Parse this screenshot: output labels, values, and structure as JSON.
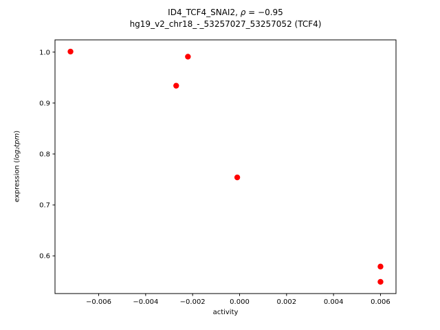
{
  "title": {
    "prefix": "ID4_TCF4_SNAI2, ",
    "math_rho": "ρ",
    "math_rest": " = −0.95",
    "line2": "hg19_v2_chr18_-_53257027_53257052 (TCF4)"
  },
  "ylabel_parts": {
    "prefix": "expression (",
    "math": "log₂tpm",
    "suffix": ")"
  },
  "chart_data": {
    "type": "scatter",
    "title": "ID4_TCF4_SNAI2, ρ = −0.95\nhg19_v2_chr18_-_53257027_53257052 (TCF4)",
    "xlabel": "activity",
    "ylabel": "expression (log2 tpm)",
    "marker_color": "#ff0000",
    "marker_radius": 4.2,
    "axis_color": "#000000",
    "xlim": [
      -0.00786,
      0.00666
    ],
    "ylim": [
      0.526,
      1.024
    ],
    "xticks": [
      -0.006,
      -0.004,
      -0.002,
      0.0,
      0.002,
      0.004,
      0.006
    ],
    "xtick_labels": [
      "−0.006",
      "−0.004",
      "−0.002",
      "0.000",
      "0.002",
      "0.004",
      "0.006"
    ],
    "yticks": [
      0.6,
      0.7,
      0.8,
      0.9,
      1.0
    ],
    "ytick_labels": [
      "0.6",
      "0.7",
      "0.8",
      "0.9",
      "1.0"
    ],
    "grid": false,
    "legend": null,
    "points": [
      {
        "x": -0.0072,
        "y": 1.001
      },
      {
        "x": -0.0027,
        "y": 0.934
      },
      {
        "x": -0.0022,
        "y": 0.991
      },
      {
        "x": -0.0001,
        "y": 0.754
      },
      {
        "x": 0.006,
        "y": 0.579
      },
      {
        "x": 0.006,
        "y": 0.549
      }
    ]
  }
}
